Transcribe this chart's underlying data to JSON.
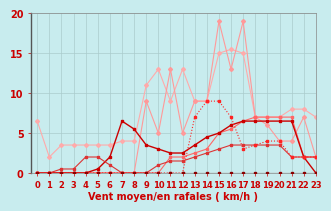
{
  "bg_color": "#c8ecee",
  "grid_color": "#aacccc",
  "xlabel": "Vent moyen/en rafales ( km/h )",
  "xlim": [
    -0.5,
    23
  ],
  "ylim": [
    0,
    20
  ],
  "yticks": [
    0,
    5,
    10,
    15,
    20
  ],
  "xticks": [
    0,
    1,
    2,
    3,
    4,
    5,
    6,
    7,
    8,
    9,
    10,
    11,
    12,
    13,
    14,
    15,
    16,
    17,
    18,
    19,
    20,
    21,
    22,
    23
  ],
  "lines": [
    {
      "comment": "lightest pink - highest peaks, starts at 6.5",
      "x": [
        0,
        1,
        2,
        3,
        4,
        5,
        6,
        7,
        8,
        9,
        10,
        11,
        12,
        13,
        14,
        15,
        16,
        17,
        18,
        19,
        20,
        21,
        22,
        23
      ],
      "y": [
        6.5,
        2,
        3.5,
        3.5,
        3.5,
        3.5,
        3.5,
        4,
        4,
        11,
        13,
        9,
        13,
        9,
        9,
        15,
        15.5,
        15,
        7,
        7,
        7,
        8,
        8,
        7
      ],
      "color": "#ffaaaa",
      "lw": 0.8,
      "marker": "D",
      "ms": 2.0,
      "zorder": 2
    },
    {
      "comment": "medium pink - big spikes at 15 and 17 around 19-20",
      "x": [
        0,
        1,
        2,
        3,
        4,
        5,
        6,
        7,
        8,
        9,
        10,
        11,
        12,
        13,
        14,
        15,
        16,
        17,
        18,
        19,
        20,
        21,
        22,
        23
      ],
      "y": [
        0,
        0,
        0,
        0,
        0,
        0,
        0,
        0,
        0,
        9,
        5,
        13,
        5,
        9,
        9,
        19,
        13,
        19,
        7,
        6,
        4,
        4,
        7,
        2
      ],
      "color": "#ff9999",
      "lw": 0.8,
      "marker": "D",
      "ms": 2.0,
      "zorder": 3
    },
    {
      "comment": "dark red dotted - peaks around 9 at x=14-15",
      "x": [
        0,
        1,
        2,
        3,
        4,
        5,
        6,
        7,
        8,
        9,
        10,
        11,
        12,
        13,
        14,
        15,
        16,
        17,
        18,
        19,
        20,
        21,
        22,
        23
      ],
      "y": [
        0,
        0,
        0,
        0,
        0,
        0,
        0,
        0,
        0,
        0,
        0,
        0,
        0,
        7,
        9,
        9,
        7,
        3,
        3.5,
        4,
        4,
        2,
        2,
        2
      ],
      "color": "#ff2222",
      "lw": 0.8,
      "marker": "s",
      "ms": 2.0,
      "zorder": 6,
      "linestyle": "dotted"
    },
    {
      "comment": "medium red - gradual rise",
      "x": [
        0,
        1,
        2,
        3,
        4,
        5,
        6,
        7,
        8,
        9,
        10,
        11,
        12,
        13,
        14,
        15,
        16,
        17,
        18,
        19,
        20,
        21,
        22,
        23
      ],
      "y": [
        0,
        0,
        0,
        0,
        0,
        0,
        0,
        0,
        0,
        0,
        0,
        2,
        2,
        2.5,
        3,
        5,
        5.5,
        6.5,
        7,
        7,
        7,
        7,
        2,
        2
      ],
      "color": "#ff6666",
      "lw": 0.8,
      "marker": "s",
      "ms": 2.0,
      "zorder": 4
    },
    {
      "comment": "darker red line - rises from x=5 with peak at x=7-8",
      "x": [
        0,
        1,
        2,
        3,
        4,
        5,
        6,
        7,
        8,
        9,
        10,
        11,
        12,
        13,
        14,
        15,
        16,
        17,
        18,
        19,
        20,
        21,
        22,
        23
      ],
      "y": [
        0,
        0,
        0,
        0,
        0,
        0.5,
        2,
        6.5,
        5.5,
        3.5,
        3,
        2.5,
        2.5,
        3.5,
        4.5,
        5,
        6,
        6.5,
        6.5,
        6.5,
        6.5,
        6.5,
        2,
        0
      ],
      "color": "#cc0000",
      "lw": 1.0,
      "marker": "s",
      "ms": 2.0,
      "zorder": 5
    },
    {
      "comment": "dark red - small values, nearly flat",
      "x": [
        0,
        1,
        2,
        3,
        4,
        5,
        6,
        7,
        8,
        9,
        10,
        11,
        12,
        13,
        14,
        15,
        16,
        17,
        18,
        19,
        20,
        21,
        22,
        23
      ],
      "y": [
        0,
        0,
        0.5,
        0.5,
        2,
        2,
        1,
        0,
        0,
        0,
        1,
        1.5,
        1.5,
        2,
        2.5,
        3,
        3.5,
        3.5,
        3.5,
        3.5,
        3.5,
        2,
        2,
        2
      ],
      "color": "#dd3333",
      "lw": 0.8,
      "marker": "s",
      "ms": 2.0,
      "zorder": 5
    },
    {
      "comment": "very dark red - nearly zero line",
      "x": [
        0,
        1,
        2,
        3,
        4,
        5,
        6,
        7,
        8,
        9,
        10,
        11,
        12,
        13,
        14,
        15,
        16,
        17,
        18,
        19,
        20,
        21,
        22,
        23
      ],
      "y": [
        0,
        0,
        0,
        0,
        0,
        0,
        0,
        0,
        0,
        0,
        0,
        0,
        0,
        0,
        0,
        0,
        0,
        0,
        0,
        0,
        0,
        0,
        0,
        0
      ],
      "color": "#880000",
      "lw": 0.8,
      "marker": "s",
      "ms": 2.0,
      "zorder": 7
    }
  ],
  "xlabel_color": "#cc0000",
  "xlabel_fontsize": 7,
  "tick_fontsize": 6,
  "tick_color": "#cc0000"
}
